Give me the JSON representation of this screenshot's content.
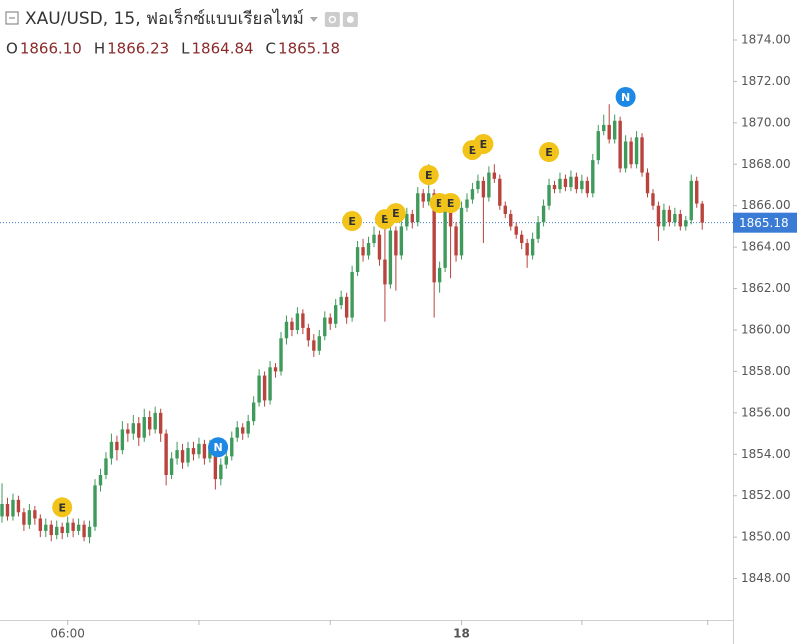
{
  "chart_data": {
    "type": "candlestick",
    "title": "XAU/USD, 15, ฟอเร็กซ์แบบเรียลไทม์",
    "legend_ohlc": [
      {
        "label": "O",
        "value": "1866.10"
      },
      {
        "label": "H",
        "value": "1866.23"
      },
      {
        "label": "L",
        "value": "1864.84"
      },
      {
        "label": "C",
        "value": "1865.18"
      }
    ],
    "up_color": "#3f9a5c",
    "down_color": "#b9433d",
    "grid": false,
    "xlim": [
      -0.37,
      133.63
    ],
    "ylim": [
      1846.0,
      1875.93
    ],
    "xticks": [
      {
        "value": 12,
        "label": "06:00"
      },
      {
        "value": 36,
        "label": null
      },
      {
        "value": 60,
        "label": null
      },
      {
        "value": 84,
        "label": "18"
      },
      {
        "value": 106,
        "label": null
      },
      {
        "value": 129,
        "label": null
      }
    ],
    "yticks": [
      {
        "value": 1848,
        "label": "1848.00"
      },
      {
        "value": 1850,
        "label": "1850.00"
      },
      {
        "value": 1852,
        "label": "1852.00"
      },
      {
        "value": 1854,
        "label": "1854.00"
      },
      {
        "value": 1856,
        "label": "1856.00"
      },
      {
        "value": 1858,
        "label": "1858.00"
      },
      {
        "value": 1860,
        "label": "1860.00"
      },
      {
        "value": 1862,
        "label": "1862.00"
      },
      {
        "value": 1864,
        "label": "1864.00"
      },
      {
        "value": 1866,
        "label": "1866.00"
      },
      {
        "value": 1868,
        "label": "1868.00"
      },
      {
        "value": 1870,
        "label": "1870.00"
      },
      {
        "value": 1872,
        "label": "1872.00"
      },
      {
        "value": 1874,
        "label": "1874.00"
      }
    ],
    "last_price": {
      "value": 1865.18,
      "label": "1865.18",
      "color": "#3a7bd5"
    },
    "candles": [
      [
        1851.0,
        1852.6,
        1850.7,
        1851.6
      ],
      [
        1851.6,
        1851.9,
        1850.8,
        1851.0
      ],
      [
        1851.0,
        1852.1,
        1850.8,
        1851.8
      ],
      [
        1851.8,
        1852.0,
        1851.0,
        1851.2
      ],
      [
        1851.2,
        1851.4,
        1850.3,
        1850.6
      ],
      [
        1850.6,
        1851.6,
        1850.4,
        1851.3
      ],
      [
        1851.3,
        1851.5,
        1850.6,
        1850.9
      ],
      [
        1850.9,
        1851.1,
        1850.0,
        1850.3
      ],
      [
        1850.3,
        1850.9,
        1850.0,
        1850.6
      ],
      [
        1850.6,
        1850.8,
        1849.8,
        1850.1
      ],
      [
        1850.1,
        1850.8,
        1849.9,
        1850.5
      ],
      [
        1850.5,
        1850.7,
        1849.9,
        1850.2
      ],
      [
        1850.2,
        1851.0,
        1850.0,
        1850.7
      ],
      [
        1850.7,
        1850.9,
        1850.0,
        1850.3
      ],
      [
        1850.3,
        1850.9,
        1850.1,
        1850.6
      ],
      [
        1850.6,
        1850.8,
        1849.8,
        1850.0
      ],
      [
        1850.0,
        1850.8,
        1849.7,
        1850.5
      ],
      [
        1850.5,
        1852.8,
        1850.3,
        1852.5
      ],
      [
        1852.5,
        1853.3,
        1852.2,
        1853.0
      ],
      [
        1853.0,
        1854.1,
        1852.8,
        1853.8
      ],
      [
        1853.8,
        1855.0,
        1853.5,
        1854.6
      ],
      [
        1854.6,
        1854.9,
        1853.7,
        1854.2
      ],
      [
        1854.2,
        1855.6,
        1854.0,
        1855.2
      ],
      [
        1855.2,
        1855.5,
        1854.6,
        1855.0
      ],
      [
        1855.0,
        1855.9,
        1854.7,
        1855.5
      ],
      [
        1855.5,
        1855.8,
        1854.4,
        1854.8
      ],
      [
        1854.8,
        1856.2,
        1854.6,
        1855.8
      ],
      [
        1855.8,
        1856.1,
        1854.9,
        1855.2
      ],
      [
        1855.2,
        1856.3,
        1855.0,
        1856.0
      ],
      [
        1856.0,
        1856.2,
        1854.6,
        1855.0
      ],
      [
        1855.0,
        1855.2,
        1852.5,
        1853.0
      ],
      [
        1853.0,
        1854.1,
        1852.8,
        1853.8
      ],
      [
        1853.8,
        1854.6,
        1853.5,
        1854.2
      ],
      [
        1854.2,
        1854.5,
        1853.3,
        1853.6
      ],
      [
        1853.6,
        1854.6,
        1853.4,
        1854.3
      ],
      [
        1854.3,
        1854.6,
        1853.7,
        1854.0
      ],
      [
        1854.0,
        1854.8,
        1853.8,
        1854.5
      ],
      [
        1854.5,
        1854.7,
        1853.5,
        1853.8
      ],
      [
        1853.8,
        1854.7,
        1853.6,
        1854.4
      ],
      [
        1854.4,
        1854.6,
        1852.3,
        1852.8
      ],
      [
        1852.8,
        1853.8,
        1852.5,
        1853.5
      ],
      [
        1853.5,
        1854.2,
        1853.3,
        1853.9
      ],
      [
        1853.9,
        1855.1,
        1853.7,
        1854.8
      ],
      [
        1854.8,
        1855.6,
        1854.6,
        1855.3
      ],
      [
        1855.3,
        1855.5,
        1854.7,
        1855.0
      ],
      [
        1855.0,
        1855.9,
        1854.8,
        1855.6
      ],
      [
        1855.6,
        1856.8,
        1855.4,
        1856.5
      ],
      [
        1856.5,
        1858.1,
        1856.3,
        1857.8
      ],
      [
        1857.8,
        1858.0,
        1856.3,
        1856.6
      ],
      [
        1856.6,
        1858.5,
        1856.4,
        1858.2
      ],
      [
        1858.2,
        1858.4,
        1857.7,
        1858.0
      ],
      [
        1858.0,
        1859.9,
        1857.8,
        1859.6
      ],
      [
        1859.6,
        1860.7,
        1859.3,
        1860.4
      ],
      [
        1860.4,
        1860.6,
        1859.7,
        1860.0
      ],
      [
        1860.0,
        1861.1,
        1859.8,
        1860.8
      ],
      [
        1860.8,
        1861.0,
        1859.8,
        1860.1
      ],
      [
        1860.1,
        1860.3,
        1859.2,
        1859.5
      ],
      [
        1859.5,
        1859.8,
        1858.7,
        1859.0
      ],
      [
        1859.0,
        1860.0,
        1858.8,
        1859.7
      ],
      [
        1859.7,
        1860.9,
        1859.5,
        1860.6
      ],
      [
        1860.6,
        1860.8,
        1860.0,
        1860.3
      ],
      [
        1860.3,
        1861.5,
        1860.1,
        1861.2
      ],
      [
        1861.2,
        1861.9,
        1861.0,
        1861.6
      ],
      [
        1861.6,
        1861.8,
        1860.3,
        1860.6
      ],
      [
        1860.6,
        1863.1,
        1860.4,
        1862.8
      ],
      [
        1862.8,
        1864.3,
        1862.6,
        1864.0
      ],
      [
        1864.0,
        1864.4,
        1863.3,
        1863.6
      ],
      [
        1863.6,
        1864.5,
        1863.4,
        1864.2
      ],
      [
        1864.2,
        1865.0,
        1864.0,
        1864.6
      ],
      [
        1864.6,
        1864.8,
        1863.1,
        1863.4
      ],
      [
        1863.4,
        1865.2,
        1860.4,
        1862.2
      ],
      [
        1862.2,
        1865.1,
        1862.0,
        1864.8
      ],
      [
        1864.8,
        1865.0,
        1861.9,
        1863.6
      ],
      [
        1863.6,
        1865.3,
        1863.4,
        1865.0
      ],
      [
        1865.0,
        1865.9,
        1864.8,
        1865.6
      ],
      [
        1865.6,
        1865.8,
        1864.9,
        1865.2
      ],
      [
        1865.2,
        1866.9,
        1865.0,
        1866.6
      ],
      [
        1866.6,
        1866.8,
        1865.9,
        1866.2
      ],
      [
        1866.2,
        1868.0,
        1866.0,
        1866.6
      ],
      [
        1866.6,
        1866.8,
        1860.6,
        1862.3
      ],
      [
        1862.3,
        1863.3,
        1861.8,
        1863.0
      ],
      [
        1863.0,
        1866.1,
        1862.8,
        1865.8
      ],
      [
        1865.8,
        1866.0,
        1862.5,
        1865.0
      ],
      [
        1865.0,
        1865.2,
        1863.3,
        1863.6
      ],
      [
        1863.6,
        1866.2,
        1863.4,
        1865.9
      ],
      [
        1865.9,
        1866.6,
        1865.7,
        1866.3
      ],
      [
        1866.3,
        1867.1,
        1866.1,
        1866.8
      ],
      [
        1866.8,
        1867.5,
        1866.6,
        1867.2
      ],
      [
        1867.2,
        1867.4,
        1864.2,
        1866.4
      ],
      [
        1866.4,
        1867.9,
        1866.2,
        1867.6
      ],
      [
        1867.6,
        1868.0,
        1867.1,
        1867.3
      ],
      [
        1867.3,
        1867.5,
        1865.8,
        1866.0
      ],
      [
        1866.0,
        1866.2,
        1865.4,
        1865.6
      ],
      [
        1865.6,
        1865.8,
        1864.8,
        1865.0
      ],
      [
        1865.0,
        1865.2,
        1864.4,
        1864.6
      ],
      [
        1864.6,
        1864.8,
        1863.9,
        1864.2
      ],
      [
        1864.2,
        1864.4,
        1863.0,
        1863.6
      ],
      [
        1863.6,
        1864.7,
        1863.4,
        1864.4
      ],
      [
        1864.4,
        1865.5,
        1864.2,
        1865.2
      ],
      [
        1865.2,
        1866.3,
        1865.0,
        1866.0
      ],
      [
        1866.0,
        1867.3,
        1865.8,
        1867.0
      ],
      [
        1867.0,
        1867.2,
        1866.6,
        1866.8
      ],
      [
        1866.8,
        1867.6,
        1866.6,
        1867.3
      ],
      [
        1867.3,
        1867.5,
        1866.7,
        1866.9
      ],
      [
        1866.9,
        1867.7,
        1866.7,
        1867.4
      ],
      [
        1867.4,
        1867.6,
        1866.6,
        1866.8
      ],
      [
        1866.8,
        1867.5,
        1866.6,
        1867.2
      ],
      [
        1867.2,
        1867.4,
        1866.4,
        1866.6
      ],
      [
        1866.6,
        1868.5,
        1866.4,
        1868.2
      ],
      [
        1868.2,
        1869.9,
        1868.0,
        1869.6
      ],
      [
        1869.6,
        1870.4,
        1869.4,
        1869.9
      ],
      [
        1869.9,
        1870.9,
        1869.0,
        1869.2
      ],
      [
        1869.2,
        1870.4,
        1869.0,
        1870.1
      ],
      [
        1870.1,
        1870.3,
        1867.6,
        1867.8
      ],
      [
        1867.8,
        1869.4,
        1867.6,
        1869.1
      ],
      [
        1869.1,
        1869.3,
        1867.8,
        1868.0
      ],
      [
        1868.0,
        1869.6,
        1867.8,
        1869.3
      ],
      [
        1869.3,
        1869.5,
        1867.4,
        1867.6
      ],
      [
        1867.6,
        1867.8,
        1866.4,
        1866.6
      ],
      [
        1866.6,
        1866.8,
        1865.8,
        1866.0
      ],
      [
        1866.0,
        1866.2,
        1864.3,
        1865.0
      ],
      [
        1865.0,
        1866.1,
        1864.8,
        1865.8
      ],
      [
        1865.8,
        1866.0,
        1865.0,
        1865.2
      ],
      [
        1865.2,
        1865.9,
        1865.0,
        1865.6
      ],
      [
        1865.6,
        1865.8,
        1864.8,
        1865.0
      ],
      [
        1865.0,
        1865.5,
        1864.8,
        1865.3
      ],
      [
        1865.3,
        1867.5,
        1865.1,
        1867.2
      ],
      [
        1867.2,
        1867.4,
        1865.9,
        1866.1
      ],
      [
        1866.1,
        1866.23,
        1864.84,
        1865.18
      ]
    ],
    "events": [
      {
        "label": "E",
        "x": 11,
        "y": 1851.44,
        "color": "#f2c318"
      },
      {
        "label": "N",
        "x": 39.5,
        "y": 1854.34,
        "color": "#1e88e5"
      },
      {
        "label": "E",
        "x": 64,
        "y": 1865.26,
        "color": "#f2c318"
      },
      {
        "label": "E",
        "x": 70,
        "y": 1865.35,
        "color": "#f2c318"
      },
      {
        "label": "E",
        "x": 72,
        "y": 1865.64,
        "color": "#f2c318"
      },
      {
        "label": "E",
        "x": 78,
        "y": 1867.48,
        "color": "#f2c318"
      },
      {
        "label": "E",
        "x": 80,
        "y": 1866.13,
        "color": "#f2c318"
      },
      {
        "label": "E",
        "x": 82,
        "y": 1866.13,
        "color": "#f2c318"
      },
      {
        "label": "E",
        "x": 86,
        "y": 1868.69,
        "color": "#f2c318"
      },
      {
        "label": "E",
        "x": 88,
        "y": 1868.98,
        "color": "#f2c318"
      },
      {
        "label": "E",
        "x": 100,
        "y": 1868.59,
        "color": "#f2c318"
      },
      {
        "label": "N",
        "x": 114,
        "y": 1871.25,
        "color": "#1e88e5"
      }
    ]
  }
}
